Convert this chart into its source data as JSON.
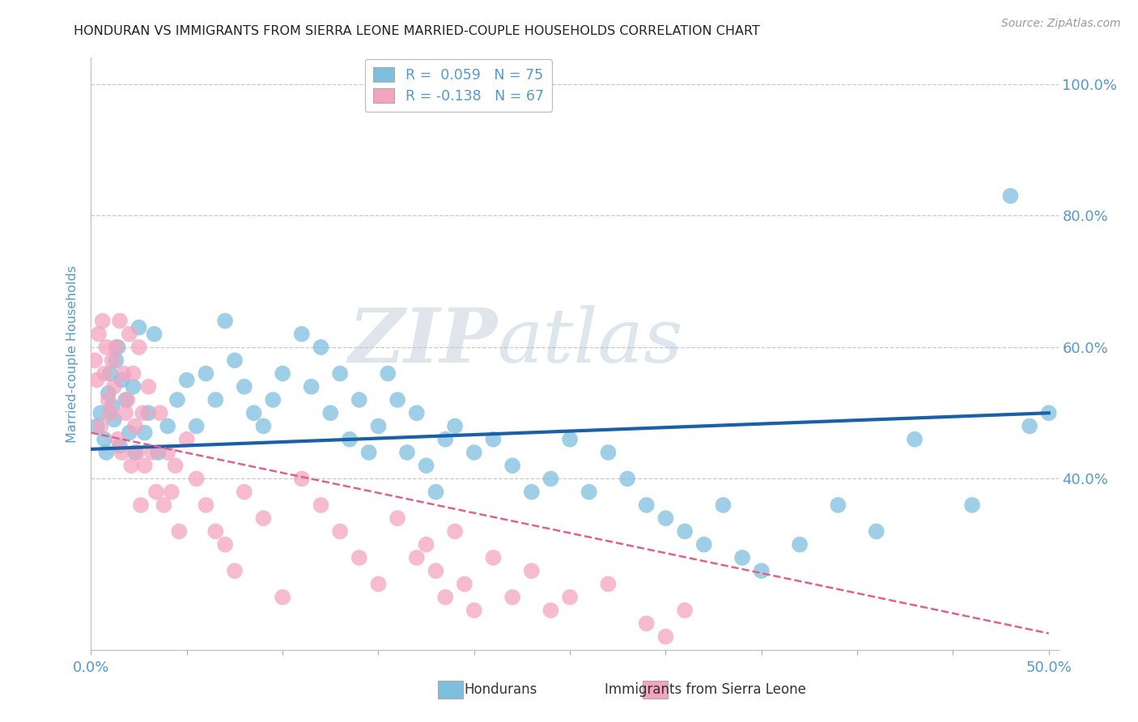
{
  "title": "HONDURAN VS IMMIGRANTS FROM SIERRA LEONE MARRIED-COUPLE HOUSEHOLDS CORRELATION CHART",
  "source": "Source: ZipAtlas.com",
  "ylabel": "Married-couple Households",
  "xlim": [
    0.0,
    0.505
  ],
  "ylim": [
    0.14,
    1.04
  ],
  "ytick_positions": [
    0.4,
    0.6,
    0.8,
    1.0
  ],
  "ytick_labels": [
    "40.0%",
    "60.0%",
    "80.0%",
    "100.0%"
  ],
  "legend_label1": "R =  0.059   N = 75",
  "legend_label2": "R = -0.138   N = 67",
  "blue_color": "#7fbfde",
  "pink_color": "#f4a4be",
  "blue_line_color": "#1a5fa8",
  "pink_line_color": "#e06090",
  "watermark": "ZIPatlas",
  "background_color": "#ffffff",
  "grid_color": "#c8c8c8",
  "title_color": "#222222",
  "tick_label_color": "#5599cc",
  "blue_scatter_x": [
    0.003,
    0.005,
    0.007,
    0.008,
    0.009,
    0.01,
    0.011,
    0.012,
    0.013,
    0.014,
    0.015,
    0.016,
    0.018,
    0.02,
    0.022,
    0.023,
    0.025,
    0.028,
    0.03,
    0.033,
    0.035,
    0.04,
    0.045,
    0.05,
    0.055,
    0.06,
    0.065,
    0.07,
    0.075,
    0.08,
    0.085,
    0.09,
    0.095,
    0.1,
    0.11,
    0.115,
    0.12,
    0.125,
    0.13,
    0.135,
    0.14,
    0.145,
    0.15,
    0.155,
    0.16,
    0.165,
    0.17,
    0.175,
    0.18,
    0.185,
    0.19,
    0.2,
    0.21,
    0.22,
    0.23,
    0.24,
    0.25,
    0.26,
    0.27,
    0.28,
    0.29,
    0.3,
    0.31,
    0.32,
    0.33,
    0.34,
    0.35,
    0.37,
    0.39,
    0.41,
    0.43,
    0.46,
    0.48,
    0.49,
    0.5
  ],
  "blue_scatter_y": [
    0.48,
    0.5,
    0.46,
    0.44,
    0.53,
    0.56,
    0.51,
    0.49,
    0.58,
    0.6,
    0.45,
    0.55,
    0.52,
    0.47,
    0.54,
    0.44,
    0.63,
    0.47,
    0.5,
    0.62,
    0.44,
    0.48,
    0.52,
    0.55,
    0.48,
    0.56,
    0.52,
    0.64,
    0.58,
    0.54,
    0.5,
    0.48,
    0.52,
    0.56,
    0.62,
    0.54,
    0.6,
    0.5,
    0.56,
    0.46,
    0.52,
    0.44,
    0.48,
    0.56,
    0.52,
    0.44,
    0.5,
    0.42,
    0.38,
    0.46,
    0.48,
    0.44,
    0.46,
    0.42,
    0.38,
    0.4,
    0.46,
    0.38,
    0.44,
    0.4,
    0.36,
    0.34,
    0.32,
    0.3,
    0.36,
    0.28,
    0.26,
    0.3,
    0.36,
    0.32,
    0.46,
    0.36,
    0.83,
    0.48,
    0.5
  ],
  "pink_scatter_x": [
    0.002,
    0.003,
    0.004,
    0.005,
    0.006,
    0.007,
    0.008,
    0.009,
    0.01,
    0.011,
    0.012,
    0.013,
    0.014,
    0.015,
    0.016,
    0.017,
    0.018,
    0.019,
    0.02,
    0.021,
    0.022,
    0.023,
    0.024,
    0.025,
    0.026,
    0.027,
    0.028,
    0.03,
    0.032,
    0.034,
    0.036,
    0.038,
    0.04,
    0.042,
    0.044,
    0.046,
    0.05,
    0.055,
    0.06,
    0.065,
    0.07,
    0.075,
    0.08,
    0.09,
    0.1,
    0.11,
    0.12,
    0.13,
    0.14,
    0.15,
    0.16,
    0.17,
    0.175,
    0.18,
    0.185,
    0.19,
    0.195,
    0.2,
    0.21,
    0.22,
    0.23,
    0.24,
    0.25,
    0.27,
    0.29,
    0.3,
    0.31
  ],
  "pink_scatter_y": [
    0.58,
    0.55,
    0.62,
    0.48,
    0.64,
    0.56,
    0.6,
    0.52,
    0.5,
    0.58,
    0.54,
    0.6,
    0.46,
    0.64,
    0.44,
    0.56,
    0.5,
    0.52,
    0.62,
    0.42,
    0.56,
    0.48,
    0.44,
    0.6,
    0.36,
    0.5,
    0.42,
    0.54,
    0.44,
    0.38,
    0.5,
    0.36,
    0.44,
    0.38,
    0.42,
    0.32,
    0.46,
    0.4,
    0.36,
    0.32,
    0.3,
    0.26,
    0.38,
    0.34,
    0.22,
    0.4,
    0.36,
    0.32,
    0.28,
    0.24,
    0.34,
    0.28,
    0.3,
    0.26,
    0.22,
    0.32,
    0.24,
    0.2,
    0.28,
    0.22,
    0.26,
    0.2,
    0.22,
    0.24,
    0.18,
    0.16,
    0.2
  ],
  "blue_line_x": [
    0.0,
    0.5
  ],
  "blue_line_y": [
    0.445,
    0.5
  ],
  "pink_line_x": [
    0.0,
    0.5
  ],
  "pink_line_y": [
    0.47,
    0.165
  ]
}
